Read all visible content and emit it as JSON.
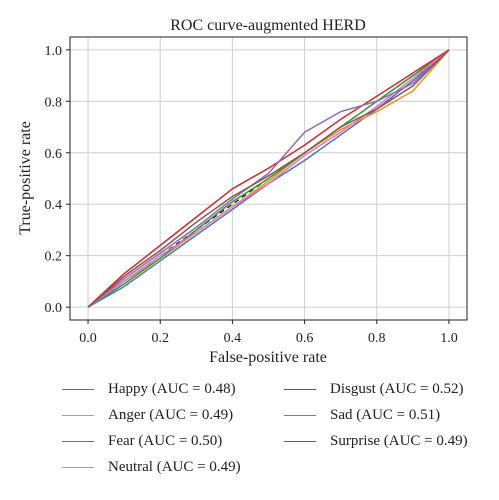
{
  "chart_data": {
    "type": "line",
    "title": "ROC curve-augmented HERD",
    "xlabel": "False-positive rate",
    "ylabel": "True-positive rate",
    "xlim": [
      -0.05,
      1.05
    ],
    "ylim": [
      -0.05,
      1.05
    ],
    "xticks": [
      "0.0",
      "0.2",
      "0.4",
      "0.6",
      "0.8",
      "1.0"
    ],
    "yticks": [
      "0.0",
      "0.2",
      "0.4",
      "0.6",
      "0.8",
      "1.0"
    ],
    "grid": true,
    "legend_position": "below",
    "reference_line": {
      "x": [
        0,
        1
      ],
      "y": [
        0,
        1
      ],
      "style": "dashed",
      "color": "#111111"
    },
    "series": [
      {
        "name": "Happy",
        "label": "Happy (AUC = 0.48)",
        "color": "#4c72b0",
        "x": [
          0,
          0.1,
          0.2,
          0.3,
          0.4,
          0.5,
          0.6,
          0.7,
          0.8,
          0.9,
          1.0
        ],
        "y": [
          0,
          0.08,
          0.18,
          0.28,
          0.38,
          0.48,
          0.57,
          0.67,
          0.77,
          0.88,
          1.0
        ]
      },
      {
        "name": "Anger",
        "label": "Anger (AUC = 0.49)",
        "color": "#f28e2b",
        "x": [
          0,
          0.1,
          0.2,
          0.3,
          0.4,
          0.5,
          0.6,
          0.7,
          0.8,
          0.9,
          1.0
        ],
        "y": [
          0,
          0.1,
          0.19,
          0.29,
          0.39,
          0.49,
          0.6,
          0.69,
          0.76,
          0.84,
          1.0
        ]
      },
      {
        "name": "Fear",
        "label": "Fear (AUC = 0.50)",
        "color": "#2ca02c",
        "x": [
          0,
          0.1,
          0.2,
          0.3,
          0.4,
          0.5,
          0.6,
          0.7,
          0.8,
          0.9,
          1.0
        ],
        "y": [
          0,
          0.09,
          0.19,
          0.3,
          0.41,
          0.5,
          0.6,
          0.7,
          0.8,
          0.9,
          1.0
        ]
      },
      {
        "name": "Neutral",
        "label": "Neutral (AUC = 0.49)",
        "color": "#e377c2",
        "x": [
          0,
          0.1,
          0.2,
          0.3,
          0.4,
          0.5,
          0.6,
          0.7,
          0.8,
          0.9,
          1.0
        ],
        "y": [
          0,
          0.1,
          0.2,
          0.29,
          0.39,
          0.48,
          0.59,
          0.68,
          0.78,
          0.89,
          1.0
        ]
      },
      {
        "name": "Disgust",
        "label": "Disgust (AUC = 0.52)",
        "color": "#d62728",
        "x": [
          0,
          0.1,
          0.2,
          0.3,
          0.4,
          0.5,
          0.6,
          0.7,
          0.8,
          0.9,
          1.0
        ],
        "y": [
          0,
          0.13,
          0.24,
          0.35,
          0.46,
          0.54,
          0.63,
          0.73,
          0.82,
          0.91,
          1.0
        ]
      },
      {
        "name": "Sad",
        "label": "Sad (AUC = 0.51)",
        "color": "#9467bd",
        "x": [
          0,
          0.1,
          0.2,
          0.3,
          0.4,
          0.5,
          0.6,
          0.7,
          0.8,
          0.9,
          1.0
        ],
        "y": [
          0,
          0.11,
          0.21,
          0.31,
          0.42,
          0.52,
          0.68,
          0.76,
          0.8,
          0.87,
          1.0
        ]
      },
      {
        "name": "Surprise",
        "label": "Surprise (AUC = 0.49)",
        "color": "#8c564b",
        "x": [
          0,
          0.1,
          0.2,
          0.3,
          0.4,
          0.5,
          0.6,
          0.7,
          0.8,
          0.9,
          1.0
        ],
        "y": [
          0,
          0.12,
          0.22,
          0.33,
          0.43,
          0.51,
          0.6,
          0.7,
          0.77,
          0.86,
          1.0
        ]
      }
    ]
  }
}
